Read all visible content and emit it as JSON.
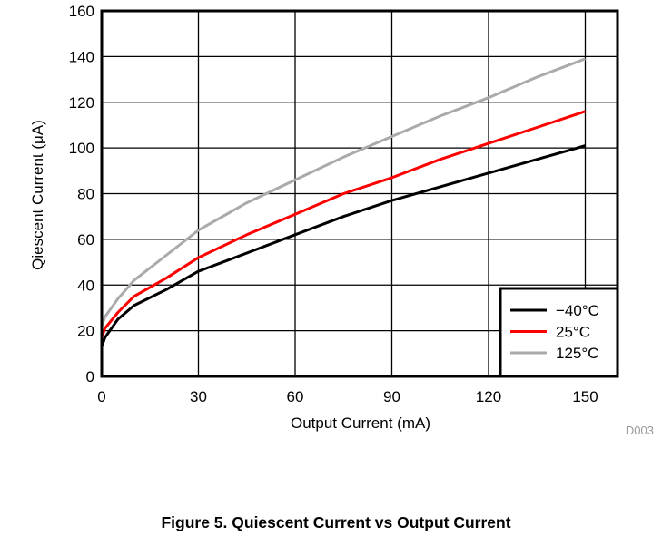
{
  "chart_data": {
    "type": "line",
    "title": "",
    "xlabel": "Output Current (mA)",
    "ylabel": "Qiescent Current (μA)",
    "xlim": [
      0,
      160
    ],
    "ylim": [
      0,
      160
    ],
    "xticks": [
      0,
      30,
      60,
      90,
      120,
      150
    ],
    "yticks": [
      0,
      20,
      40,
      60,
      80,
      100,
      120,
      140,
      160
    ],
    "grid": true,
    "legend_position": "lower right",
    "series": [
      {
        "name": "−40°C",
        "color": "#000000",
        "x": [
          0,
          1,
          5,
          10,
          20,
          30,
          45,
          60,
          75,
          90,
          105,
          120,
          135,
          150
        ],
        "y": [
          13,
          17,
          25,
          31,
          38,
          46,
          54,
          62,
          70,
          77,
          83,
          89,
          95,
          101
        ]
      },
      {
        "name": "25°C",
        "color": "#ff0000",
        "x": [
          0,
          1,
          5,
          10,
          20,
          30,
          45,
          60,
          75,
          90,
          105,
          120,
          135,
          150
        ],
        "y": [
          17,
          21,
          28,
          35,
          43,
          52,
          62,
          71,
          80,
          87,
          95,
          102,
          109,
          116
        ]
      },
      {
        "name": "125°C",
        "color": "#aaaaaa",
        "x": [
          0,
          1,
          5,
          10,
          20,
          30,
          45,
          60,
          75,
          90,
          105,
          120,
          135,
          150
        ],
        "y": [
          22,
          26,
          34,
          42,
          53,
          64,
          76,
          86,
          96,
          105,
          114,
          122,
          131,
          139
        ]
      }
    ],
    "annotations": [
      "D003"
    ]
  },
  "figure": {
    "caption": "Figure 5. Quiescent Current vs Output Current",
    "id_label": "D003"
  }
}
